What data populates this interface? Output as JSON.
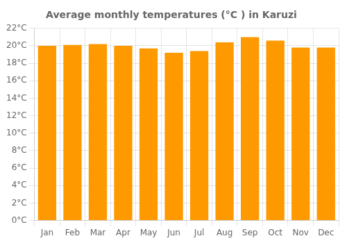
{
  "chart_data": {
    "type": "bar",
    "title": "Average monthly temperatures (°C ) in Karuzi",
    "categories": [
      "Jan",
      "Feb",
      "Mar",
      "Apr",
      "May",
      "Jun",
      "Jul",
      "Aug",
      "Sep",
      "Oct",
      "Nov",
      "Dec"
    ],
    "values": [
      20.0,
      20.1,
      20.2,
      20.0,
      19.7,
      19.2,
      19.4,
      20.4,
      21.0,
      20.6,
      19.8,
      19.8
    ],
    "color": "#FF9900",
    "ylim": [
      0,
      22
    ],
    "yticks": [
      {
        "value": 0,
        "label": "0°C"
      },
      {
        "value": 2,
        "label": "2°C"
      },
      {
        "value": 4,
        "label": "4°C"
      },
      {
        "value": 6,
        "label": "6°C"
      },
      {
        "value": 8,
        "label": "8°C"
      },
      {
        "value": 10,
        "label": "10°C"
      },
      {
        "value": 12,
        "label": "12°C"
      },
      {
        "value": 14,
        "label": "14°C"
      },
      {
        "value": 16,
        "label": "16°C"
      },
      {
        "value": 18,
        "label": "18°C"
      },
      {
        "value": 20,
        "label": "20°C"
      },
      {
        "value": 22,
        "label": "22°C"
      }
    ],
    "grid": true
  }
}
